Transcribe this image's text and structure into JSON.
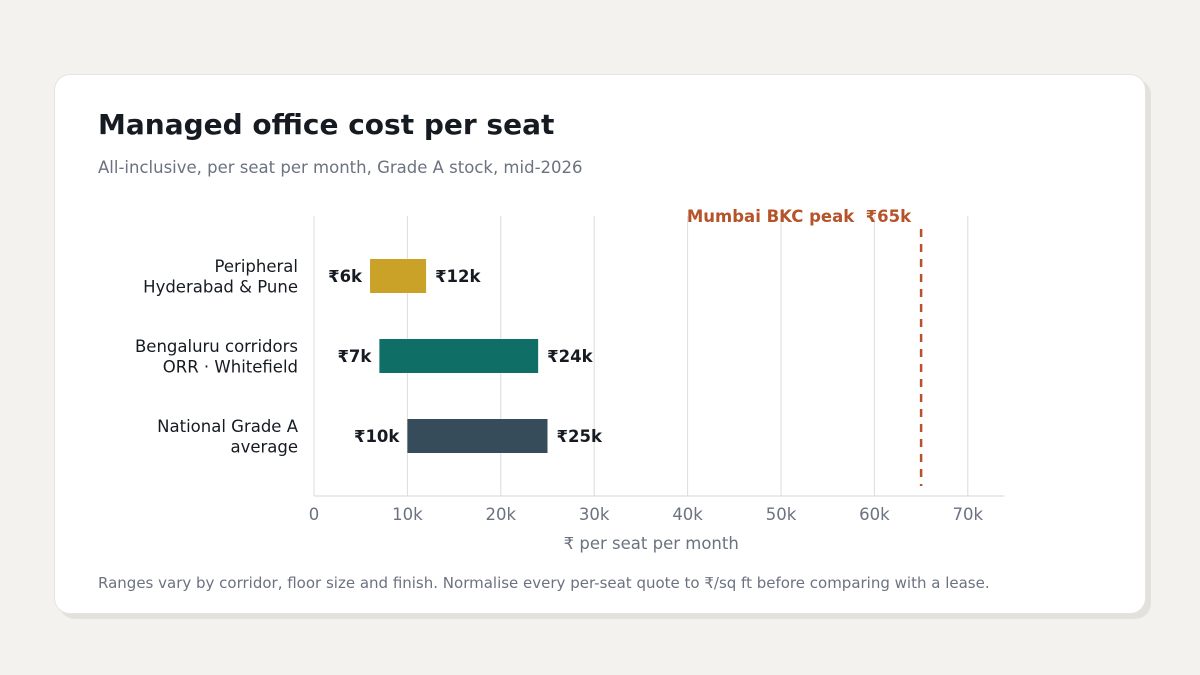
{
  "title": "Managed office cost per seat",
  "subtitle": "All-inclusive, per seat per month, Grade A stock, mid-2026",
  "footnote": "Ranges vary by corridor, floor size and finish. Normalise every per-seat quote to ₹/sq ft before comparing with a lease.",
  "chart_data": {
    "type": "bar",
    "orientation": "horizontal-range",
    "xlabel": "₹ per seat per month",
    "ylabel": "",
    "xlim": [
      0,
      72000
    ],
    "x_ticks": [
      0,
      10000,
      20000,
      30000,
      40000,
      50000,
      60000,
      70000
    ],
    "x_tick_labels": [
      "0",
      "10k",
      "20k",
      "30k",
      "40k",
      "50k",
      "60k",
      "70k"
    ],
    "grid": true,
    "legend": "none",
    "categories": [
      [
        "Peripheral",
        "Hyderabad & Pune"
      ],
      [
        "Bengaluru corridors",
        "ORR · Whitefield"
      ],
      [
        "National Grade A",
        "average"
      ]
    ],
    "ranges": [
      {
        "low": 6000,
        "high": 12000,
        "low_label": "₹6k",
        "high_label": "₹12k",
        "color": "#c9a227"
      },
      {
        "low": 7000,
        "high": 24000,
        "low_label": "₹7k",
        "high_label": "₹24k",
        "color": "#0f6e66"
      },
      {
        "low": 10000,
        "high": 25000,
        "low_label": "₹10k",
        "high_label": "₹25k",
        "color": "#364c5a"
      }
    ],
    "reference_line": {
      "value": 65000,
      "label": "Mumbai BKC peak  ₹65k",
      "color": "#b5532a",
      "style": "dashed"
    }
  }
}
